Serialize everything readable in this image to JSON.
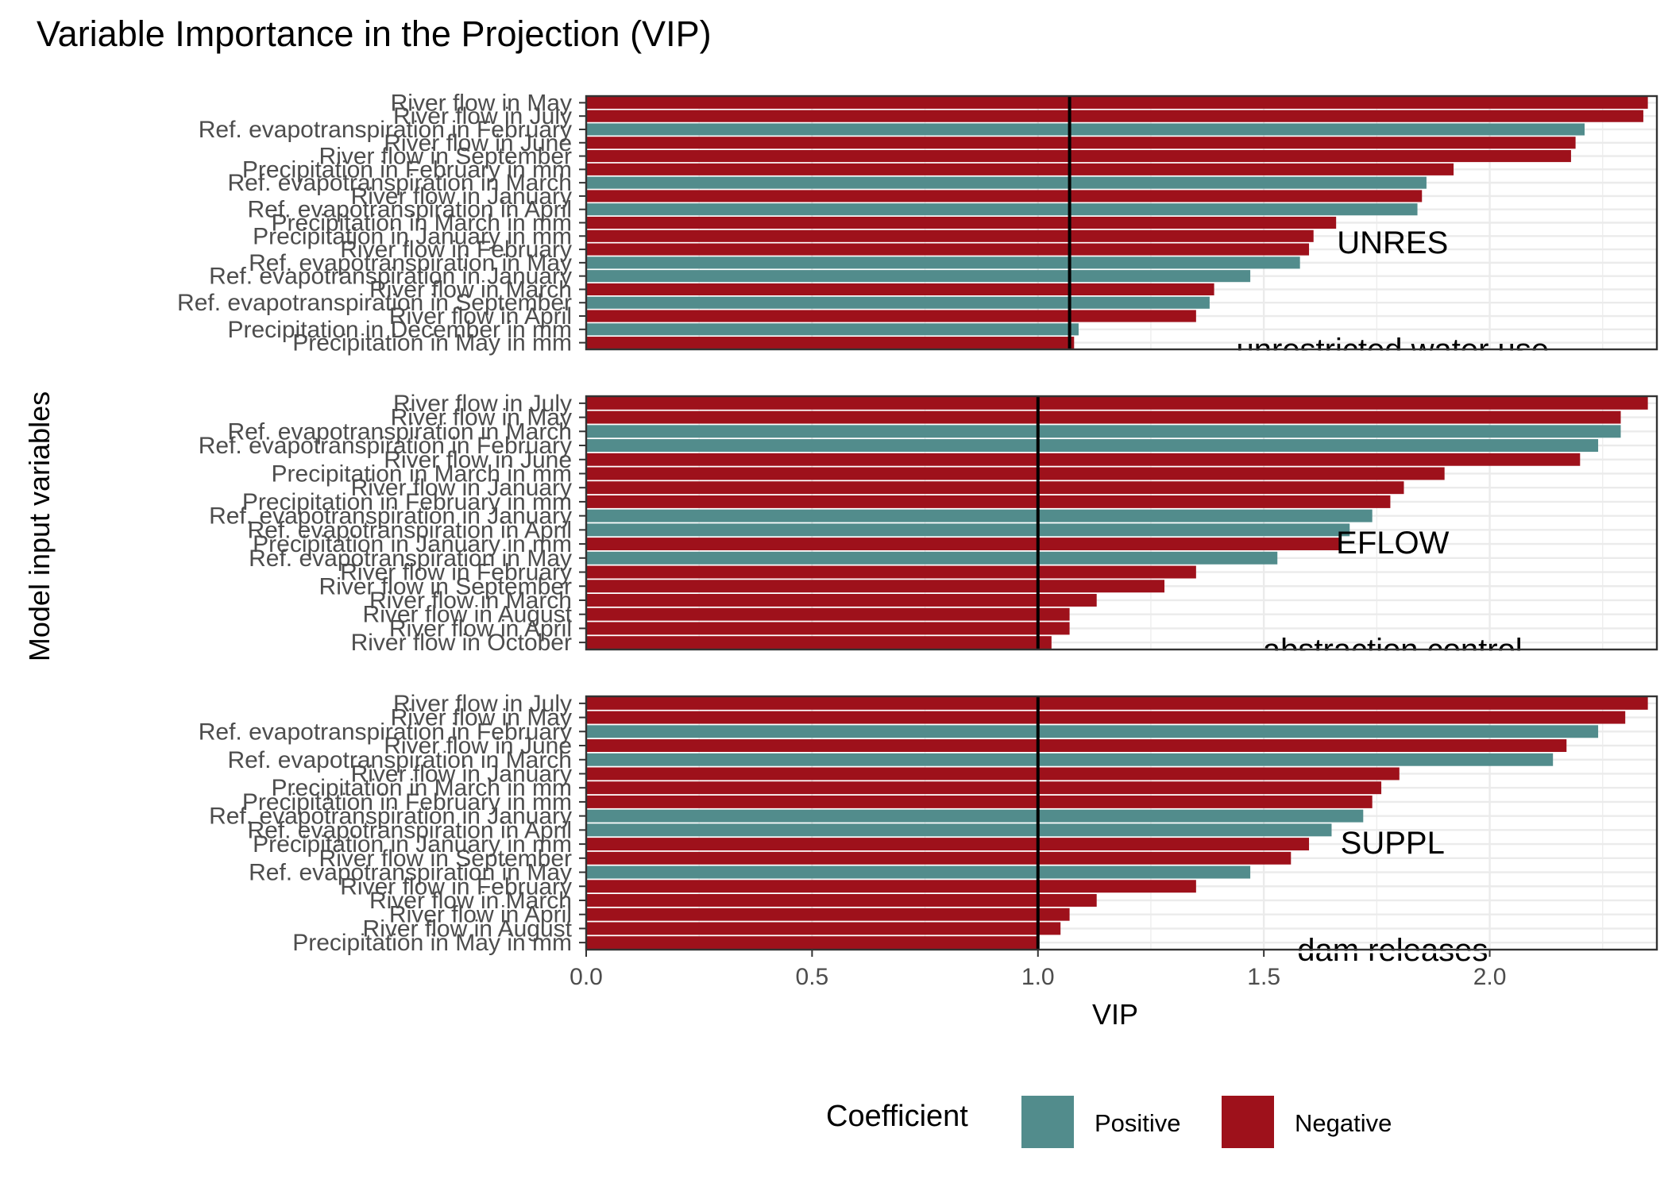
{
  "chart_data": {
    "type": "bar",
    "title": "Variable Importance in the Projection (VIP)",
    "xlabel": "VIP",
    "ylabel": "Model input variables",
    "xlim": [
      0,
      2.37
    ],
    "x_ticks": [
      0.0,
      0.5,
      1.0,
      1.5,
      2.0
    ],
    "x_tick_labels": [
      "0.0",
      "0.5",
      "1.0",
      "1.5",
      "2.0"
    ],
    "grid": true,
    "legend": {
      "title": "Coefficient",
      "position": "bottom",
      "items": [
        {
          "label": "Positive",
          "color": "#528c8c"
        },
        {
          "label": "Negative",
          "color": "#9e111b"
        }
      ]
    },
    "colors": {
      "Positive": "#528c8c",
      "Negative": "#9e111b"
    },
    "panels": [
      {
        "label": "UNRES",
        "sublabel": "unrestricted water use",
        "threshold": 1.07,
        "bars": [
          {
            "variable": "River flow in May",
            "vip": 2.35,
            "sign": "Negative"
          },
          {
            "variable": "River flow in July",
            "vip": 2.34,
            "sign": "Negative"
          },
          {
            "variable": "Ref. evapotranspiration in February",
            "vip": 2.21,
            "sign": "Positive"
          },
          {
            "variable": "River flow in June",
            "vip": 2.19,
            "sign": "Negative"
          },
          {
            "variable": "River flow in September",
            "vip": 2.18,
            "sign": "Negative"
          },
          {
            "variable": "Precipitation in February in mm",
            "vip": 1.92,
            "sign": "Negative"
          },
          {
            "variable": "Ref. evapotranspiration in March",
            "vip": 1.86,
            "sign": "Positive"
          },
          {
            "variable": "River flow in January",
            "vip": 1.85,
            "sign": "Negative"
          },
          {
            "variable": "Ref. evapotranspiration in April",
            "vip": 1.84,
            "sign": "Positive"
          },
          {
            "variable": "Precipitation in March in mm",
            "vip": 1.66,
            "sign": "Negative"
          },
          {
            "variable": "Precipitation in January in mm",
            "vip": 1.61,
            "sign": "Negative"
          },
          {
            "variable": "River flow in February",
            "vip": 1.6,
            "sign": "Negative"
          },
          {
            "variable": "Ref. evapotranspiration in May",
            "vip": 1.58,
            "sign": "Positive"
          },
          {
            "variable": "Ref. evapotranspiration in January",
            "vip": 1.47,
            "sign": "Positive"
          },
          {
            "variable": "River flow in March",
            "vip": 1.39,
            "sign": "Negative"
          },
          {
            "variable": "Ref. evapotranspiration in September",
            "vip": 1.38,
            "sign": "Positive"
          },
          {
            "variable": "River flow in April",
            "vip": 1.35,
            "sign": "Negative"
          },
          {
            "variable": "Precipitation in December in mm",
            "vip": 1.09,
            "sign": "Positive"
          },
          {
            "variable": "Precipitation in May in mm",
            "vip": 1.08,
            "sign": "Negative"
          }
        ]
      },
      {
        "label": "EFLOW",
        "sublabel": "abstraction control",
        "threshold": 1.0,
        "bars": [
          {
            "variable": "River flow in July",
            "vip": 2.35,
            "sign": "Negative"
          },
          {
            "variable": "River flow in May",
            "vip": 2.29,
            "sign": "Negative"
          },
          {
            "variable": "Ref. evapotranspiration in March",
            "vip": 2.29,
            "sign": "Positive"
          },
          {
            "variable": "Ref. evapotranspiration in February",
            "vip": 2.24,
            "sign": "Positive"
          },
          {
            "variable": "River flow in June",
            "vip": 2.2,
            "sign": "Negative"
          },
          {
            "variable": "Precipitation in March in mm",
            "vip": 1.9,
            "sign": "Negative"
          },
          {
            "variable": "River flow in January",
            "vip": 1.81,
            "sign": "Negative"
          },
          {
            "variable": "Precipitation in February in mm",
            "vip": 1.78,
            "sign": "Negative"
          },
          {
            "variable": "Ref. evapotranspiration in January",
            "vip": 1.74,
            "sign": "Positive"
          },
          {
            "variable": "Ref. evapotranspiration in April",
            "vip": 1.69,
            "sign": "Positive"
          },
          {
            "variable": "Precipitation in January in mm",
            "vip": 1.67,
            "sign": "Negative"
          },
          {
            "variable": "Ref. evapotranspiration in May",
            "vip": 1.53,
            "sign": "Positive"
          },
          {
            "variable": "River flow in February",
            "vip": 1.35,
            "sign": "Negative"
          },
          {
            "variable": "River flow in September",
            "vip": 1.28,
            "sign": "Negative"
          },
          {
            "variable": "River flow in March",
            "vip": 1.13,
            "sign": "Negative"
          },
          {
            "variable": "River flow in August",
            "vip": 1.07,
            "sign": "Negative"
          },
          {
            "variable": "River flow in April",
            "vip": 1.07,
            "sign": "Negative"
          },
          {
            "variable": "River flow in October",
            "vip": 1.03,
            "sign": "Negative"
          }
        ]
      },
      {
        "label": "SUPPL",
        "sublabel": "dam releases",
        "threshold": 1.0,
        "bars": [
          {
            "variable": "River flow in July",
            "vip": 2.35,
            "sign": "Negative"
          },
          {
            "variable": "River flow in May",
            "vip": 2.3,
            "sign": "Negative"
          },
          {
            "variable": "Ref. evapotranspiration in February",
            "vip": 2.24,
            "sign": "Positive"
          },
          {
            "variable": "River flow in June",
            "vip": 2.17,
            "sign": "Negative"
          },
          {
            "variable": "Ref. evapotranspiration in March",
            "vip": 2.14,
            "sign": "Positive"
          },
          {
            "variable": "River flow in January",
            "vip": 1.8,
            "sign": "Negative"
          },
          {
            "variable": "Precipitation in March in mm",
            "vip": 1.76,
            "sign": "Negative"
          },
          {
            "variable": "Precipitation in February in mm",
            "vip": 1.74,
            "sign": "Negative"
          },
          {
            "variable": "Ref. evapotranspiration in January",
            "vip": 1.72,
            "sign": "Positive"
          },
          {
            "variable": "Ref. evapotranspiration in April",
            "vip": 1.65,
            "sign": "Positive"
          },
          {
            "variable": "Precipitation in January in mm",
            "vip": 1.6,
            "sign": "Negative"
          },
          {
            "variable": "River flow in September",
            "vip": 1.56,
            "sign": "Negative"
          },
          {
            "variable": "Ref. evapotranspiration in May",
            "vip": 1.47,
            "sign": "Positive"
          },
          {
            "variable": "River flow in February",
            "vip": 1.35,
            "sign": "Negative"
          },
          {
            "variable": "River flow in March",
            "vip": 1.13,
            "sign": "Negative"
          },
          {
            "variable": "River flow in April",
            "vip": 1.07,
            "sign": "Negative"
          },
          {
            "variable": "River flow in August",
            "vip": 1.05,
            "sign": "Negative"
          },
          {
            "variable": "Precipitation in May in mm",
            "vip": 1.0,
            "sign": "Negative"
          }
        ]
      }
    ]
  }
}
